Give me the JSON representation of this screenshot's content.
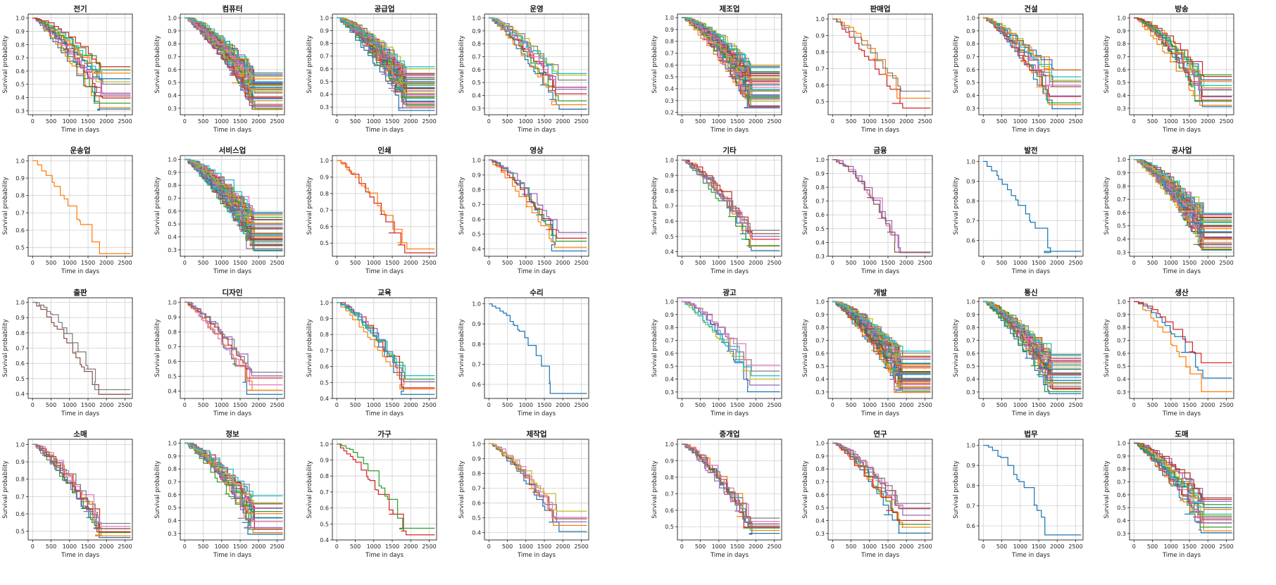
{
  "figure": {
    "x_label": "Time in days",
    "y_label": "Survival probability",
    "x_ticks": [
      0,
      500,
      1000,
      1500,
      2000,
      2500
    ],
    "x_range": [
      -120,
      2700
    ],
    "palette": [
      "#1f77b4",
      "#ff7f0e",
      "#2ca02c",
      "#d62728",
      "#9467bd",
      "#8c564b",
      "#e377c2",
      "#7f7f7f",
      "#bcbd22",
      "#17becf"
    ]
  },
  "chart_data": [
    {
      "type": "line",
      "title": "전기",
      "panel": "left",
      "row": 0,
      "col": 0,
      "series_count": 14,
      "ylim": [
        0.27,
        1.03
      ],
      "yticks": [
        0.3,
        0.4,
        0.5,
        0.6,
        0.7,
        0.8,
        0.9,
        1.0
      ],
      "min_end": 0.3,
      "max_end": 0.64,
      "seed": 11,
      "colors": [],
      "xlabel": "Time in days",
      "ylabel": "Survival probability"
    },
    {
      "type": "line",
      "title": "컴퓨터",
      "panel": "left",
      "row": 0,
      "col": 1,
      "series_count": 40,
      "ylim": [
        0.25,
        1.03
      ],
      "yticks": [
        0.3,
        0.4,
        0.5,
        0.6,
        0.7,
        0.8,
        0.9,
        1.0
      ],
      "min_end": 0.28,
      "max_end": 0.6,
      "seed": 23,
      "colors": [],
      "xlabel": "Time in days",
      "ylabel": "Survival probability"
    },
    {
      "type": "line",
      "title": "공급업",
      "panel": "left",
      "row": 0,
      "col": 2,
      "series_count": 40,
      "ylim": [
        0.24,
        1.03
      ],
      "yticks": [
        0.3,
        0.4,
        0.5,
        0.6,
        0.7,
        0.8,
        0.9,
        1.0
      ],
      "min_end": 0.26,
      "max_end": 0.62,
      "seed": 37,
      "colors": [],
      "xlabel": "Time in days",
      "ylabel": "Survival probability"
    },
    {
      "type": "line",
      "title": "운영",
      "panel": "left",
      "row": 0,
      "col": 3,
      "series_count": 10,
      "ylim": [
        0.25,
        1.03
      ],
      "yticks": [
        0.3,
        0.4,
        0.5,
        0.6,
        0.7,
        0.8,
        0.9,
        1.0
      ],
      "min_end": 0.28,
      "max_end": 0.6,
      "seed": 41,
      "colors": [],
      "xlabel": "Time in days",
      "ylabel": "Survival probability"
    },
    {
      "type": "line",
      "title": "운송업",
      "panel": "left",
      "row": 1,
      "col": 0,
      "series_count": 1,
      "ylim": [
        0.45,
        1.03
      ],
      "yticks": [
        0.5,
        0.6,
        0.7,
        0.8,
        0.9,
        1.0
      ],
      "min_end": 0.465,
      "max_end": 0.465,
      "seed": 53,
      "colors": [
        "#ff7f0e"
      ],
      "xlabel": "Time in days",
      "ylabel": "Survival probability"
    },
    {
      "type": "line",
      "title": "서비스업",
      "panel": "left",
      "row": 1,
      "col": 1,
      "series_count": 40,
      "ylim": [
        0.25,
        1.03
      ],
      "yticks": [
        0.3,
        0.4,
        0.5,
        0.6,
        0.7,
        0.8,
        0.9,
        1.0
      ],
      "min_end": 0.28,
      "max_end": 0.6,
      "seed": 61,
      "colors": [],
      "xlabel": "Time in days",
      "ylabel": "Survival probability"
    },
    {
      "type": "line",
      "title": "인쇄",
      "panel": "left",
      "row": 1,
      "col": 2,
      "series_count": 2,
      "ylim": [
        0.42,
        1.03
      ],
      "yticks": [
        0.5,
        0.6,
        0.7,
        0.8,
        0.9,
        1.0
      ],
      "min_end": 0.44,
      "max_end": 0.465,
      "seed": 71,
      "colors": [
        "#d62728",
        "#ff7f0e"
      ],
      "xlabel": "Time in days",
      "ylabel": "Survival probability"
    },
    {
      "type": "line",
      "title": "영상",
      "panel": "left",
      "row": 1,
      "col": 3,
      "series_count": 5,
      "ylim": [
        0.35,
        1.03
      ],
      "yticks": [
        0.4,
        0.5,
        0.6,
        0.7,
        0.8,
        0.9,
        1.0
      ],
      "min_end": 0.38,
      "max_end": 0.52,
      "seed": 83,
      "colors": [
        "#1f77b4",
        "#ff7f0e",
        "#2ca02c",
        "#d62728",
        "#9467bd"
      ],
      "xlabel": "Time in days",
      "ylabel": "Survival probability"
    },
    {
      "type": "line",
      "title": "출판",
      "panel": "left",
      "row": 2,
      "col": 0,
      "series_count": 2,
      "ylim": [
        0.37,
        1.03
      ],
      "yticks": [
        0.4,
        0.5,
        0.6,
        0.7,
        0.8,
        0.9,
        1.0
      ],
      "min_end": 0.395,
      "max_end": 0.43,
      "seed": 97,
      "colors": [
        "#8c564b",
        "#7f7f7f"
      ],
      "xlabel": "Time in days",
      "ylabel": "Survival probability"
    },
    {
      "type": "line",
      "title": "디자인",
      "panel": "left",
      "row": 2,
      "col": 1,
      "series_count": 6,
      "ylim": [
        0.35,
        1.03
      ],
      "yticks": [
        0.4,
        0.5,
        0.6,
        0.7,
        0.8,
        0.9,
        1.0
      ],
      "min_end": 0.37,
      "max_end": 0.55,
      "seed": 101,
      "colors": [
        "#1f77b4",
        "#ff7f0e",
        "#e377c2",
        "#d62728",
        "#9467bd",
        "#7f7f7f"
      ],
      "xlabel": "Time in days",
      "ylabel": "Survival probability"
    },
    {
      "type": "line",
      "title": "교육",
      "panel": "left",
      "row": 2,
      "col": 2,
      "series_count": 6,
      "ylim": [
        0.4,
        1.03
      ],
      "yticks": [
        0.4,
        0.5,
        0.6,
        0.7,
        0.8,
        0.9,
        1.0
      ],
      "min_end": 0.42,
      "max_end": 0.55,
      "seed": 113,
      "colors": [
        "#1f77b4",
        "#ff7f0e",
        "#d62728",
        "#9467bd",
        "#2ca02c",
        "#17becf"
      ],
      "xlabel": "Time in days",
      "ylabel": "Survival probability"
    },
    {
      "type": "line",
      "title": "수리",
      "panel": "left",
      "row": 2,
      "col": 3,
      "series_count": 1,
      "ylim": [
        0.53,
        1.03
      ],
      "yticks": [
        0.6,
        0.7,
        0.8,
        0.9,
        1.0
      ],
      "min_end": 0.555,
      "max_end": 0.555,
      "seed": 127,
      "colors": [
        "#1f77b4"
      ],
      "xlabel": "Time in days",
      "ylabel": "Survival probability"
    },
    {
      "type": "line",
      "title": "소매",
      "panel": "left",
      "row": 3,
      "col": 0,
      "series_count": 8,
      "ylim": [
        0.45,
        1.03
      ],
      "yticks": [
        0.5,
        0.6,
        0.7,
        0.8,
        0.9,
        1.0
      ],
      "min_end": 0.46,
      "max_end": 0.55,
      "seed": 131,
      "colors": [],
      "xlabel": "Time in days",
      "ylabel": "Survival probability"
    },
    {
      "type": "line",
      "title": "정보",
      "panel": "left",
      "row": 3,
      "col": 1,
      "series_count": 20,
      "ylim": [
        0.25,
        1.03
      ],
      "yticks": [
        0.3,
        0.4,
        0.5,
        0.6,
        0.7,
        0.8,
        0.9,
        1.0
      ],
      "min_end": 0.28,
      "max_end": 0.6,
      "seed": 139,
      "colors": [],
      "xlabel": "Time in days",
      "ylabel": "Survival probability"
    },
    {
      "type": "line",
      "title": "가구",
      "panel": "left",
      "row": 3,
      "col": 2,
      "series_count": 2,
      "ylim": [
        0.4,
        1.03
      ],
      "yticks": [
        0.4,
        0.5,
        0.6,
        0.7,
        0.8,
        0.9,
        1.0
      ],
      "min_end": 0.43,
      "max_end": 0.48,
      "seed": 149,
      "colors": [
        "#d62728",
        "#2ca02c"
      ],
      "xlabel": "Time in days",
      "ylabel": "Survival probability"
    },
    {
      "type": "line",
      "title": "제작업",
      "panel": "left",
      "row": 3,
      "col": 3,
      "series_count": 6,
      "ylim": [
        0.35,
        1.03
      ],
      "yticks": [
        0.4,
        0.5,
        0.6,
        0.7,
        0.8,
        0.9,
        1.0
      ],
      "min_end": 0.4,
      "max_end": 0.55,
      "seed": 151,
      "colors": [
        "#1f77b4",
        "#ff7f0e",
        "#9467bd",
        "#8c564b",
        "#e377c2",
        "#bcbd22"
      ],
      "xlabel": "Time in days",
      "ylabel": "Survival probability"
    },
    {
      "type": "line",
      "title": "제조업",
      "panel": "right",
      "row": 0,
      "col": 0,
      "series_count": 40,
      "ylim": [
        0.18,
        1.03
      ],
      "yticks": [
        0.2,
        0.3,
        0.4,
        0.5,
        0.6,
        0.7,
        0.8,
        0.9,
        1.0
      ],
      "min_end": 0.22,
      "max_end": 0.62,
      "seed": 163,
      "colors": [],
      "xlabel": "Time in days",
      "ylabel": "Survival probability"
    },
    {
      "type": "line",
      "title": "판매업",
      "panel": "right",
      "row": 0,
      "col": 1,
      "series_count": 3,
      "ylim": [
        0.42,
        1.03
      ],
      "yticks": [
        0.5,
        0.6,
        0.7,
        0.8,
        0.9,
        1.0
      ],
      "min_end": 0.455,
      "max_end": 0.575,
      "seed": 173,
      "colors": [
        "#d62728",
        "#ff7f0e",
        "#7f7f7f"
      ],
      "xlabel": "Time in days",
      "ylabel": "Survival probability"
    },
    {
      "type": "line",
      "title": "건설",
      "panel": "right",
      "row": 0,
      "col": 2,
      "series_count": 12,
      "ylim": [
        0.25,
        1.03
      ],
      "yticks": [
        0.3,
        0.4,
        0.5,
        0.6,
        0.7,
        0.8,
        0.9,
        1.0
      ],
      "min_end": 0.28,
      "max_end": 0.63,
      "seed": 181,
      "colors": [],
      "xlabel": "Time in days",
      "ylabel": "Survival probability"
    },
    {
      "type": "line",
      "title": "방송",
      "panel": "right",
      "row": 0,
      "col": 3,
      "series_count": 14,
      "ylim": [
        0.25,
        1.03
      ],
      "yticks": [
        0.3,
        0.4,
        0.5,
        0.6,
        0.7,
        0.8,
        0.9,
        1.0
      ],
      "min_end": 0.3,
      "max_end": 0.58,
      "seed": 191,
      "colors": [],
      "xlabel": "Time in days",
      "ylabel": "Survival probability"
    },
    {
      "type": "line",
      "title": "기타",
      "panel": "right",
      "row": 1,
      "col": 0,
      "series_count": 8,
      "ylim": [
        0.37,
        1.03
      ],
      "yticks": [
        0.4,
        0.5,
        0.6,
        0.7,
        0.8,
        0.9,
        1.0
      ],
      "min_end": 0.4,
      "max_end": 0.56,
      "seed": 193,
      "colors": [],
      "xlabel": "Time in days",
      "ylabel": "Survival probability"
    },
    {
      "type": "line",
      "title": "금융",
      "panel": "right",
      "row": 1,
      "col": 1,
      "series_count": 3,
      "ylim": [
        0.3,
        1.03
      ],
      "yticks": [
        0.3,
        0.4,
        0.5,
        0.6,
        0.7,
        0.8,
        0.9,
        1.0
      ],
      "min_end": 0.325,
      "max_end": 0.33,
      "seed": 197,
      "colors": [
        "#e377c2",
        "#9467bd",
        "#8c564b"
      ],
      "xlabel": "Time in days",
      "ylabel": "Survival probability"
    },
    {
      "type": "line",
      "title": "발전",
      "panel": "right",
      "row": 1,
      "col": 2,
      "series_count": 1,
      "ylim": [
        0.52,
        1.03
      ],
      "yticks": [
        0.6,
        0.7,
        0.8,
        0.9,
        1.0
      ],
      "min_end": 0.545,
      "max_end": 0.545,
      "seed": 199,
      "colors": [
        "#1f77b4"
      ],
      "xlabel": "Time in days",
      "ylabel": "Survival probability"
    },
    {
      "type": "line",
      "title": "공사업",
      "panel": "right",
      "row": 1,
      "col": 3,
      "series_count": 40,
      "ylim": [
        0.27,
        1.03
      ],
      "yticks": [
        0.3,
        0.4,
        0.5,
        0.6,
        0.7,
        0.8,
        0.9,
        1.0
      ],
      "min_end": 0.3,
      "max_end": 0.64,
      "seed": 211,
      "colors": [],
      "xlabel": "Time in days",
      "ylabel": "Survival probability"
    },
    {
      "type": "line",
      "title": "광고",
      "panel": "right",
      "row": 2,
      "col": 0,
      "series_count": 6,
      "ylim": [
        0.25,
        1.03
      ],
      "yticks": [
        0.3,
        0.4,
        0.5,
        0.6,
        0.7,
        0.8,
        0.9,
        1.0
      ],
      "min_end": 0.29,
      "max_end": 0.54,
      "seed": 223,
      "colors": [
        "#1f77b4",
        "#9467bd",
        "#bcbd22",
        "#17becf",
        "#7f7f7f",
        "#e377c2"
      ],
      "xlabel": "Time in days",
      "ylabel": "Survival probability"
    },
    {
      "type": "line",
      "title": "개발",
      "panel": "right",
      "row": 2,
      "col": 1,
      "series_count": 40,
      "ylim": [
        0.25,
        1.03
      ],
      "yticks": [
        0.3,
        0.4,
        0.5,
        0.6,
        0.7,
        0.8,
        0.9,
        1.0
      ],
      "min_end": 0.28,
      "max_end": 0.62,
      "seed": 227,
      "colors": [],
      "xlabel": "Time in days",
      "ylabel": "Survival probability"
    },
    {
      "type": "line",
      "title": "통신",
      "panel": "right",
      "row": 2,
      "col": 2,
      "series_count": 30,
      "ylim": [
        0.25,
        1.03
      ],
      "yticks": [
        0.3,
        0.4,
        0.5,
        0.6,
        0.7,
        0.8,
        0.9,
        1.0
      ],
      "min_end": 0.27,
      "max_end": 0.62,
      "seed": 229,
      "colors": [],
      "xlabel": "Time in days",
      "ylabel": "Survival probability"
    },
    {
      "type": "line",
      "title": "생산",
      "panel": "right",
      "row": 2,
      "col": 3,
      "series_count": 3,
      "ylim": [
        0.25,
        1.03
      ],
      "yticks": [
        0.3,
        0.4,
        0.5,
        0.6,
        0.7,
        0.8,
        0.9,
        1.0
      ],
      "min_end": 0.29,
      "max_end": 0.55,
      "seed": 233,
      "colors": [
        "#ff7f0e",
        "#1f77b4",
        "#d62728"
      ],
      "xlabel": "Time in days",
      "ylabel": "Survival probability"
    },
    {
      "type": "line",
      "title": "중개업",
      "panel": "right",
      "row": 3,
      "col": 0,
      "series_count": 8,
      "ylim": [
        0.42,
        1.03
      ],
      "yticks": [
        0.5,
        0.6,
        0.7,
        0.8,
        0.9,
        1.0
      ],
      "min_end": 0.455,
      "max_end": 0.555,
      "seed": 239,
      "colors": [],
      "xlabel": "Time in days",
      "ylabel": "Survival probability"
    },
    {
      "type": "line",
      "title": "연구",
      "panel": "right",
      "row": 3,
      "col": 1,
      "series_count": 8,
      "ylim": [
        0.25,
        1.03
      ],
      "yticks": [
        0.3,
        0.4,
        0.5,
        0.6,
        0.7,
        0.8,
        0.9,
        1.0
      ],
      "min_end": 0.29,
      "max_end": 0.56,
      "seed": 241,
      "colors": [],
      "xlabel": "Time in days",
      "ylabel": "Survival probability"
    },
    {
      "type": "line",
      "title": "법무",
      "panel": "right",
      "row": 3,
      "col": 2,
      "series_count": 1,
      "ylim": [
        0.53,
        1.03
      ],
      "yticks": [
        0.6,
        0.7,
        0.8,
        0.9,
        1.0
      ],
      "min_end": 0.555,
      "max_end": 0.555,
      "seed": 251,
      "colors": [
        "#1f77b4"
      ],
      "xlabel": "Time in days",
      "ylabel": "Survival probability"
    },
    {
      "type": "line",
      "title": "도매",
      "panel": "right",
      "row": 3,
      "col": 3,
      "series_count": 16,
      "ylim": [
        0.25,
        1.03
      ],
      "yticks": [
        0.3,
        0.4,
        0.5,
        0.6,
        0.7,
        0.8,
        0.9,
        1.0
      ],
      "min_end": 0.29,
      "max_end": 0.6,
      "seed": 257,
      "colors": [],
      "xlabel": "Time in days",
      "ylabel": "Survival probability"
    }
  ]
}
